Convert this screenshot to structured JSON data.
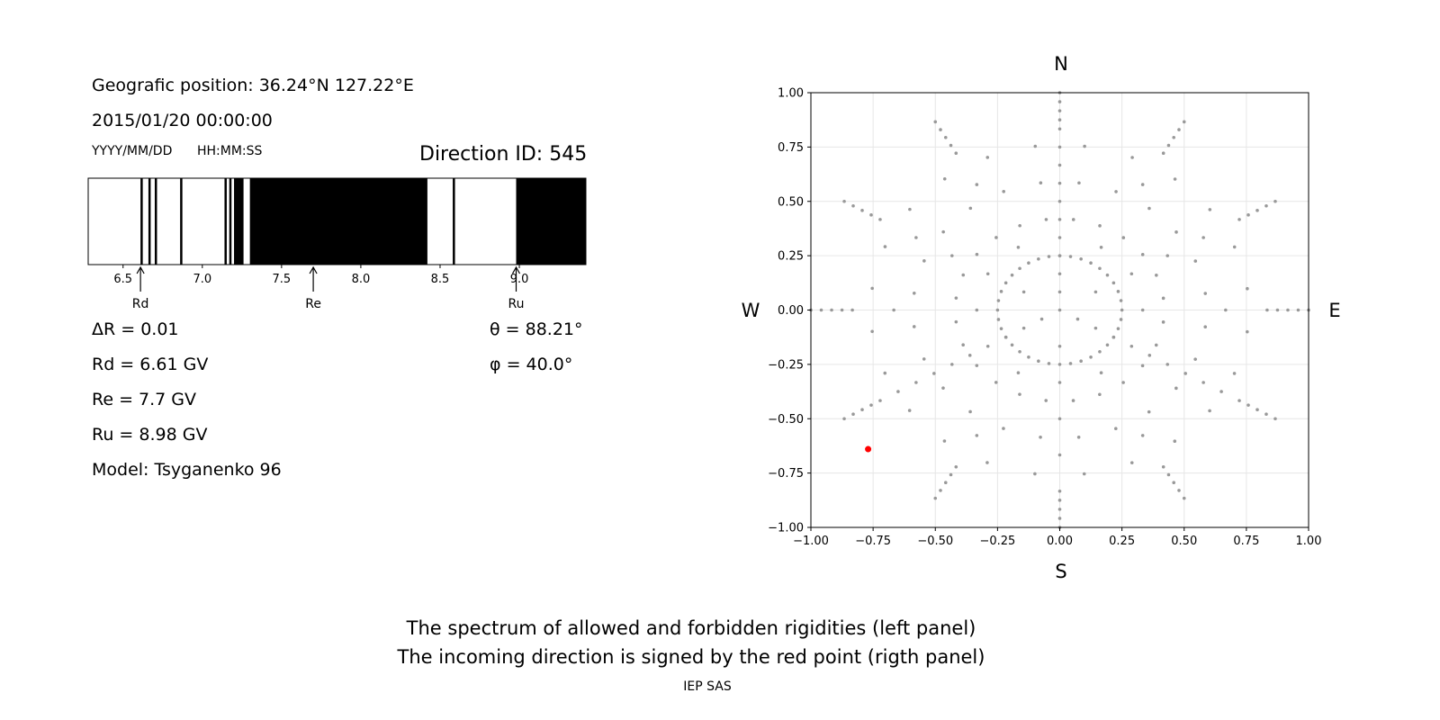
{
  "left_panel": {
    "geo_position": "Geografic position: 36.24°N 127.22°E",
    "datetime": "2015/01/20 00:00:00",
    "date_format": "YYYY/MM/DD",
    "time_format": "HH:MM:SS",
    "direction_id": "Direction ID: 545",
    "delta_r": "ΔR = 0.01",
    "rd": "Rd = 6.61 GV",
    "re": "Re = 7.7 GV",
    "ru": "Ru = 8.98 GV",
    "model": "Model: Tsyganenko 96",
    "theta": "θ = 88.21°",
    "phi": "φ = 40.0°"
  },
  "compass": {
    "north": "N",
    "south": "S",
    "west": "W",
    "east": "E"
  },
  "caption": {
    "line1": "The spectrum of allowed and forbidden rigidities (left panel)",
    "line2": "The incoming direction is signed by the red point (rigth panel)",
    "footer": "IEP SAS"
  },
  "chart_data": [
    {
      "type": "bar",
      "description_role": "rigidity spectrum",
      "xlim": [
        6.28,
        9.42
      ],
      "ticks": [
        6.5,
        7.0,
        7.5,
        8.0,
        8.5,
        9.0
      ],
      "tick_labels": [
        "6.5",
        "7.0",
        "7.5",
        "8.0",
        "8.5",
        "9.0"
      ],
      "forbidden_intervals": [
        [
          6.61,
          6.62
        ],
        [
          6.66,
          6.67
        ],
        [
          6.7,
          6.71
        ],
        [
          6.86,
          6.87
        ],
        [
          7.14,
          7.15
        ],
        [
          7.17,
          7.18
        ],
        [
          7.2,
          7.26
        ],
        [
          7.3,
          8.42
        ],
        [
          8.58,
          8.59
        ],
        [
          8.98,
          9.42
        ]
      ],
      "markers": [
        {
          "label": "Rd",
          "value": 6.61
        },
        {
          "label": "Re",
          "value": 7.7
        },
        {
          "label": "Ru",
          "value": 8.98
        }
      ],
      "colors": {
        "forbidden": "#000000",
        "allowed": "#ffffff"
      }
    },
    {
      "type": "scatter",
      "description_role": "asymptotic direction sky map",
      "xlim": [
        -1.0,
        1.0
      ],
      "ylim": [
        -1.0,
        1.0
      ],
      "xticks": [
        "−1.00",
        "−0.75",
        "−0.50",
        "−0.25",
        "0.00",
        "0.25",
        "0.50",
        "0.75",
        "1.00"
      ],
      "yticks": [
        "1.00",
        "0.75",
        "0.50",
        "0.25",
        "0.00",
        "−0.25",
        "−0.50",
        "−0.75",
        "−1.00"
      ],
      "grid": true,
      "grid_rings": 24,
      "rays_per_ring": 12,
      "ray_density_pattern": [
        2,
        8,
        4,
        8
      ],
      "inner_ring_points": 36,
      "inner_ring_radius": 0.25,
      "highlight_point": {
        "x": -0.77,
        "y": -0.64,
        "color": "#ff0000"
      },
      "point_color": "#999999"
    }
  ]
}
